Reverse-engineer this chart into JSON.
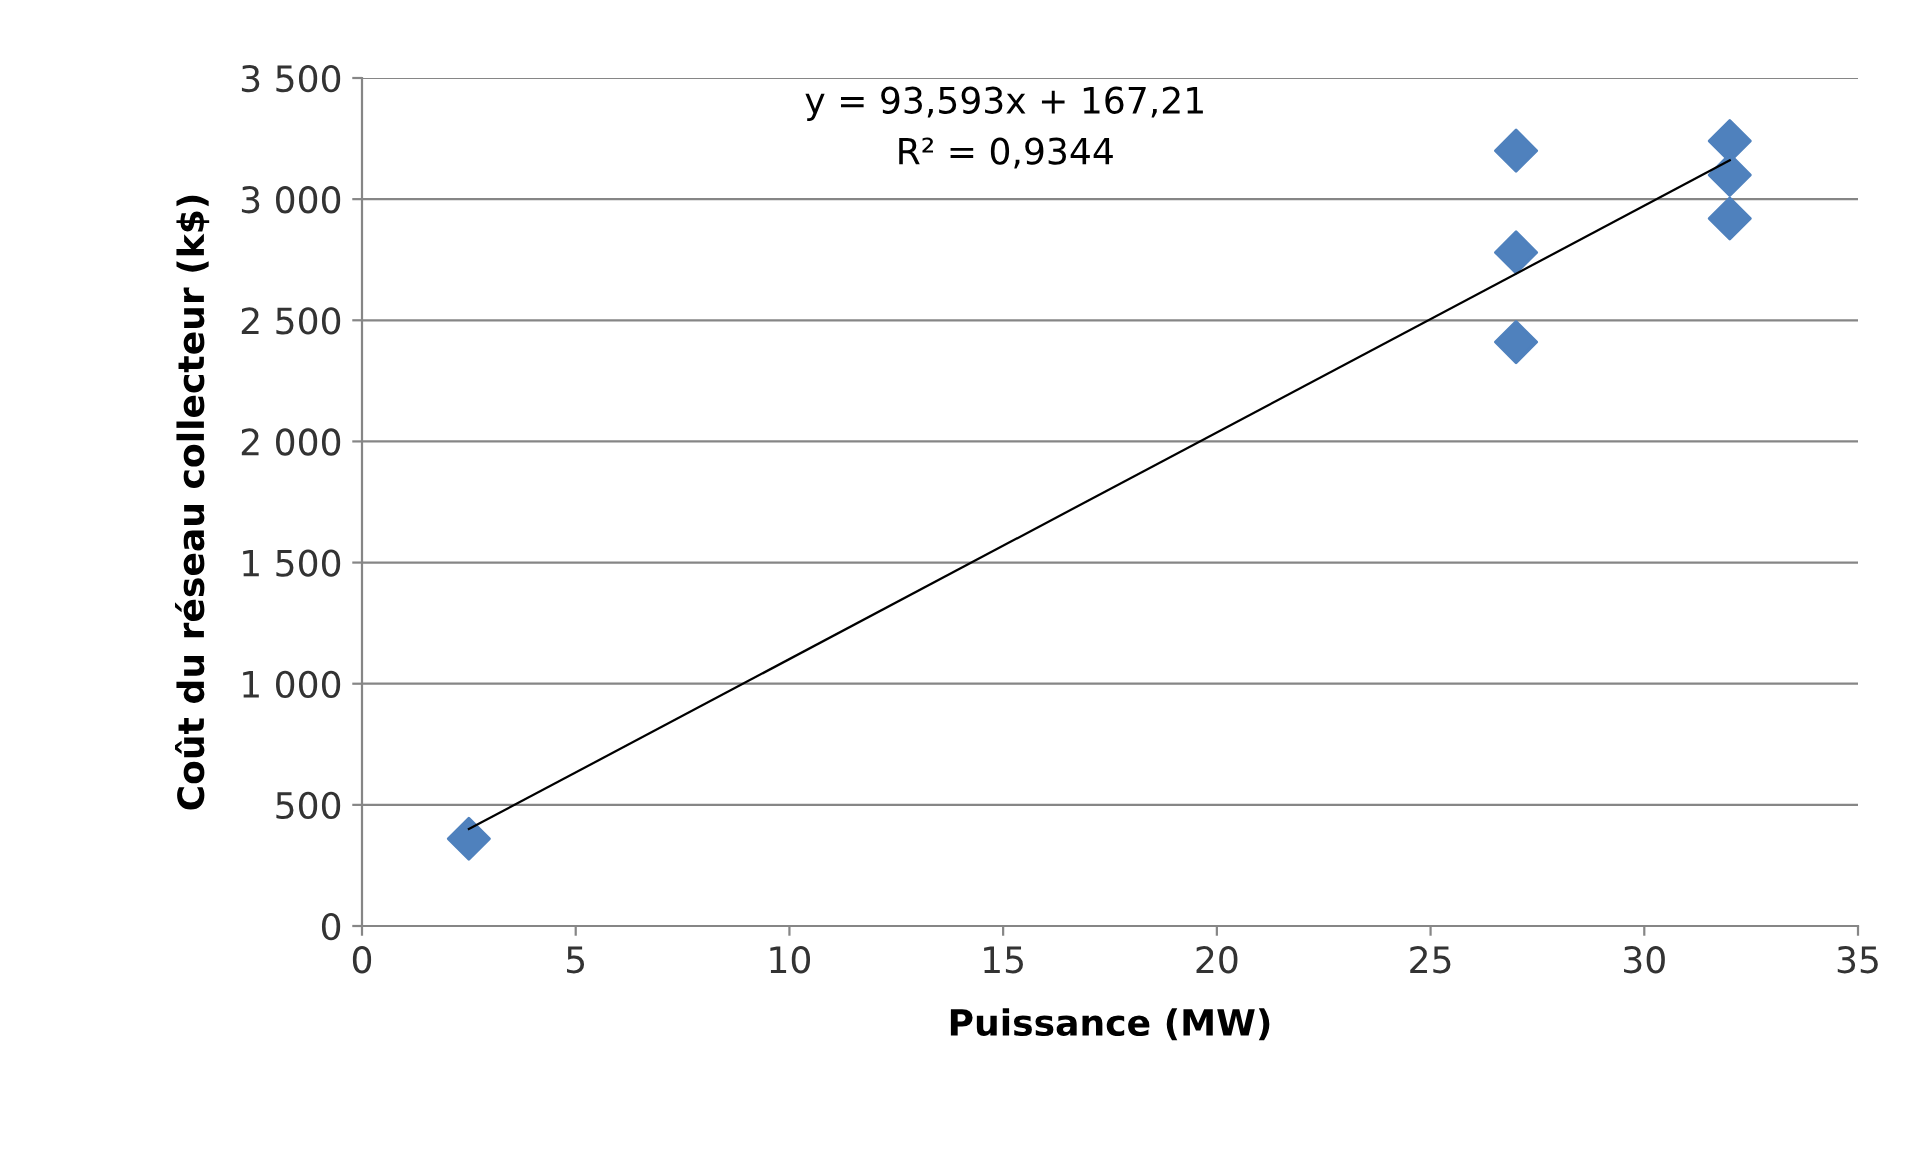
{
  "chart_data": {
    "type": "scatter",
    "xlabel": "Puissance (MW)",
    "ylabel": "Coût du réseau collecteur (k$)",
    "annotations": [
      "y = 93,593x + 167,21",
      "R² = 0,9344"
    ],
    "series": [
      {
        "color": "#4f81bd",
        "marker": "diamond",
        "x": [
          2.5,
          27,
          27,
          27,
          32,
          32,
          32
        ],
        "values": [
          360,
          3200,
          2780,
          2410,
          3240,
          3100,
          2920
        ]
      },
      {
        "type": "line",
        "color": "#000000",
        "marker": "none",
        "line_style": "solid",
        "x": [
          2.5,
          32
        ],
        "values": [
          400,
          3160
        ]
      }
    ],
    "xlim": [
      0,
      35
    ],
    "xticks": [
      0,
      5,
      10,
      15,
      20,
      25,
      30,
      35
    ],
    "ylim": [
      0,
      3500
    ],
    "yticks": [
      0,
      500,
      {
        "value": 1000,
        "label": "1 000"
      },
      {
        "value": 1500,
        "label": "1 500"
      },
      {
        "value": 2000,
        "label": "2 000"
      },
      {
        "value": 2500,
        "label": "2 500"
      },
      {
        "value": 3000,
        "label": "3 000"
      },
      {
        "value": 3500,
        "label": "3 500"
      }
    ],
    "grid": "y",
    "legend": false
  }
}
